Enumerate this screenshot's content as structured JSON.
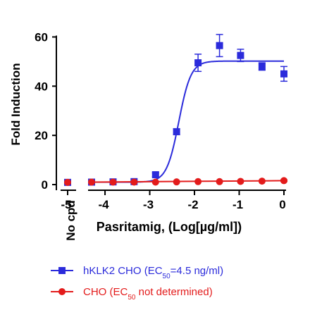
{
  "chart_data": {
    "type": "scatter",
    "ylabel": "Fold Induction",
    "xlabel": "Pasritamig, (Log[µg/ml])",
    "no_compound_label": "No cpd",
    "x_ticks": [
      -4,
      -3,
      -2,
      -1,
      0
    ],
    "no_compound_tick": -5,
    "y_ticks": [
      0,
      20,
      40,
      60
    ],
    "xlim": [
      -4.3,
      0
    ],
    "ylim": [
      0,
      65
    ],
    "series": [
      {
        "name": "hKLK2 CHO",
        "legend_parts": {
          "pre": "hKLK2 CHO (EC",
          "sub": "50",
          "post": "=4.5 ng/ml)"
        },
        "color": "#2b2bdb",
        "marker": "square",
        "no_compound": {
          "y": 0.9,
          "err": 0.3
        },
        "points": [
          {
            "x": -4.3,
            "y": 1.0,
            "err": 0.3
          },
          {
            "x": -3.82,
            "y": 1.1,
            "err": 0.3
          },
          {
            "x": -3.35,
            "y": 1.2,
            "err": 0.3
          },
          {
            "x": -2.87,
            "y": 4.0,
            "err": 0.8
          },
          {
            "x": -2.4,
            "y": 21.5,
            "err": 1.2
          },
          {
            "x": -1.92,
            "y": 49.5,
            "err": 3.5
          },
          {
            "x": -1.44,
            "y": 56.5,
            "err": 4.5
          },
          {
            "x": -0.97,
            "y": 52.5,
            "err": 2.5
          },
          {
            "x": -0.49,
            "y": 48.0,
            "err": 1.5
          },
          {
            "x": 0.0,
            "y": 45.0,
            "err": 3.0
          }
        ],
        "fit": {
          "bottom": 1.0,
          "top": 50.2,
          "log_ec50": -2.35,
          "hill": 3.2
        }
      },
      {
        "name": "CHO",
        "legend_parts": {
          "pre": "CHO  (EC",
          "sub": "50",
          "post": " not determined)"
        },
        "color": "#e31b1b",
        "marker": "circle",
        "no_compound": {
          "y": 0.9,
          "err": 0.2
        },
        "points": [
          {
            "x": -4.3,
            "y": 1.0,
            "err": 0.2
          },
          {
            "x": -3.82,
            "y": 1.0,
            "err": 0.2
          },
          {
            "x": -3.35,
            "y": 1.0,
            "err": 0.2
          },
          {
            "x": -2.87,
            "y": 1.0,
            "err": 0.2
          },
          {
            "x": -2.4,
            "y": 1.1,
            "err": 0.2
          },
          {
            "x": -1.92,
            "y": 1.2,
            "err": 0.2
          },
          {
            "x": -1.44,
            "y": 1.2,
            "err": 0.2
          },
          {
            "x": -0.97,
            "y": 1.3,
            "err": 0.2
          },
          {
            "x": -0.49,
            "y": 1.4,
            "err": 0.2
          },
          {
            "x": 0.0,
            "y": 1.6,
            "err": 0.3
          }
        ],
        "fit": {
          "type": "flat",
          "from": 1.0,
          "to": 1.6
        }
      }
    ]
  }
}
